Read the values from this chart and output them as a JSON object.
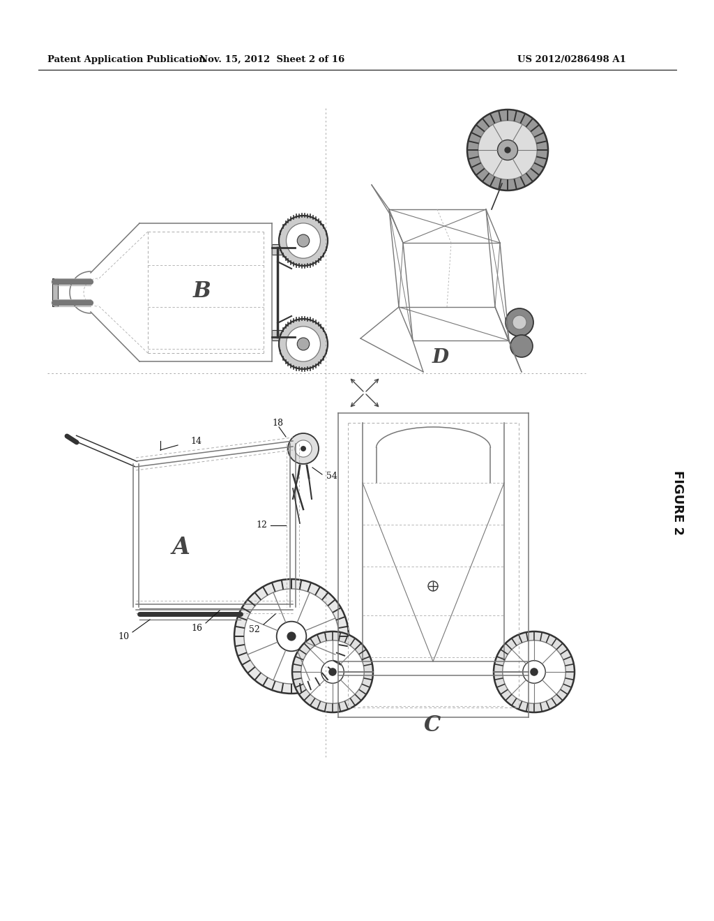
{
  "bg_color": "#ffffff",
  "header_text_left": "Patent Application Publication",
  "header_text_mid": "Nov. 15, 2012  Sheet 2 of 16",
  "header_text_right": "US 2012/0286498 A1",
  "figure_label": "FIGURE 2",
  "text_color": "#1a1a1a",
  "line_color": "#666666",
  "dark_color": "#111111",
  "view_label_A": "A",
  "view_label_B": "B",
  "view_label_C": "C",
  "view_label_D": "D",
  "ref_10": "10",
  "ref_12": "12",
  "ref_14": "14",
  "ref_16": "16",
  "ref_18": "18",
  "ref_52": "52",
  "ref_54": "54"
}
